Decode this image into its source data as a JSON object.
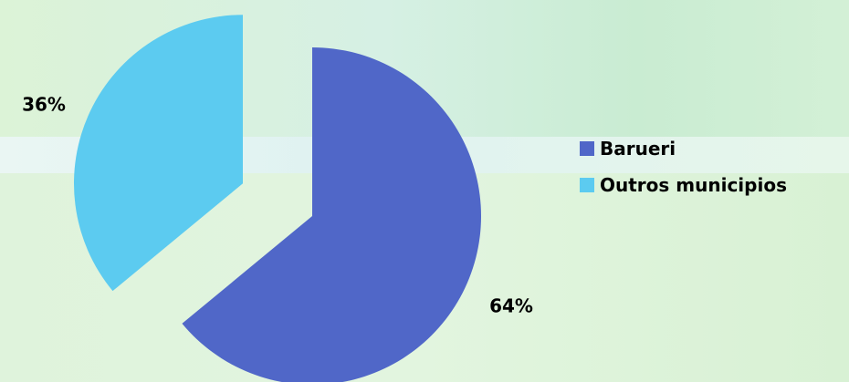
{
  "chart_data": {
    "type": "pie",
    "title": "",
    "categories": [
      "Barueri",
      "Outros municipios"
    ],
    "values": [
      64,
      36
    ],
    "data_labels": [
      "64%",
      "36%"
    ],
    "colors": [
      "#5067c8",
      "#5ccbf0"
    ],
    "exploded": [
      false,
      true
    ],
    "start_angle_deg": 0,
    "legend_position": "right"
  }
}
